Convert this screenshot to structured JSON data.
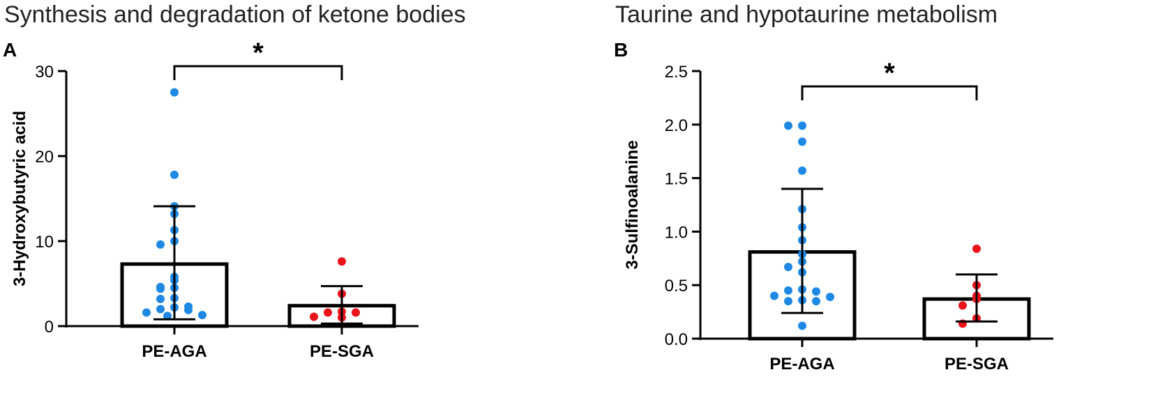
{
  "chart_data": [
    {
      "type": "bar",
      "panel_label": "A",
      "title": "Synthesis and degradation of ketone bodies",
      "ylabel": "3-Hydroxybutyric acid",
      "xlabel": "",
      "ylim": [
        0,
        30
      ],
      "yticks": [
        0,
        10,
        20,
        30
      ],
      "categories": [
        "PE-AGA",
        "PE-SGA"
      ],
      "series": [
        {
          "mean": 7.3,
          "sd_low": 0.8,
          "sd_high": 14.1,
          "color": "#1e88e5",
          "points": [
            27.5,
            17.8,
            14.1,
            13.2,
            11.3,
            10.0,
            9.6,
            5.8,
            5.4,
            4.6,
            4.5,
            4.4,
            3.3,
            3.2,
            2.3,
            2.2,
            2.0,
            1.9,
            1.6,
            1.3,
            1.2
          ]
        },
        {
          "mean": 2.4,
          "sd_low": 0.3,
          "sd_high": 4.7,
          "color": "#e8131b",
          "points": [
            7.6,
            3.8,
            1.7,
            1.6,
            1.6,
            1.1,
            1.0
          ]
        }
      ],
      "significance": "*"
    },
    {
      "type": "bar",
      "panel_label": "B",
      "title": "Taurine and hypotaurine metabolism",
      "ylabel": "3-Sulfinoalanine",
      "xlabel": "",
      "ylim": [
        0,
        2.5
      ],
      "yticks": [
        0.0,
        0.5,
        1.0,
        1.5,
        2.0,
        2.5
      ],
      "categories": [
        "PE-AGA",
        "PE-SGA"
      ],
      "series": [
        {
          "mean": 0.81,
          "sd_low": 0.24,
          "sd_high": 1.4,
          "color": "#1e88e5",
          "points": [
            1.99,
            1.99,
            1.84,
            1.57,
            1.21,
            1.04,
            0.92,
            0.79,
            0.72,
            0.67,
            0.62,
            0.46,
            0.45,
            0.44,
            0.4,
            0.39,
            0.36,
            0.35,
            0.35,
            0.12
          ]
        },
        {
          "mean": 0.37,
          "sd_low": 0.16,
          "sd_high": 0.6,
          "color": "#e8131b",
          "points": [
            0.84,
            0.5,
            0.4,
            0.37,
            0.31,
            0.19,
            0.14
          ]
        }
      ],
      "significance": "*"
    }
  ]
}
